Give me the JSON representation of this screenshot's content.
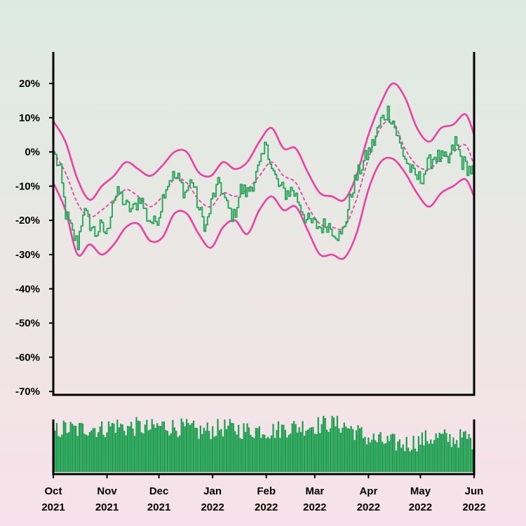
{
  "colors": {
    "price": "#2ea85f",
    "band": "#ef3fa2",
    "ma": "#ef3fa2",
    "volume": "#1a9e4e",
    "axis": "#000000"
  },
  "chart_data": [
    {
      "type": "line",
      "title": "",
      "xlabel": "",
      "ylabel": "",
      "ylim": [
        -70,
        30
      ],
      "y_ticks": [
        "20%",
        "10%",
        "0%",
        "-10%",
        "-20%",
        "-30%",
        "-40%",
        "-50%",
        "-60%",
        "-70%"
      ],
      "y_tick_values": [
        20,
        10,
        0,
        -10,
        -20,
        -30,
        -40,
        -50,
        -60,
        -70
      ],
      "x_range": [
        "2021-10-01",
        "2022-06-01"
      ],
      "x_ticks": [
        {
          "date": "2021-10-01",
          "month": "Oct",
          "year": "2021"
        },
        {
          "date": "2021-11-01",
          "month": "Nov",
          "year": "2021"
        },
        {
          "date": "2021-12-01",
          "month": "Dec",
          "year": "2021"
        },
        {
          "date": "2022-01-01",
          "month": "Jan",
          "year": "2022"
        },
        {
          "date": "2022-02-01",
          "month": "Feb",
          "year": "2022"
        },
        {
          "date": "2022-03-01",
          "month": "Mar",
          "year": "2022"
        },
        {
          "date": "2022-04-01",
          "month": "Apr",
          "year": "2022"
        },
        {
          "date": "2022-05-01",
          "month": "May",
          "year": "2022"
        },
        {
          "date": "2022-06-01",
          "month": "Jun",
          "year": "2022"
        }
      ],
      "grid": false,
      "series": [
        {
          "role": "price",
          "points": [
            [
              "2021-10-01",
              0
            ],
            [
              "2021-10-05",
              -6
            ],
            [
              "2021-10-08",
              -18
            ],
            [
              "2021-10-12",
              -24
            ],
            [
              "2021-10-15",
              -27
            ],
            [
              "2021-10-18",
              -17
            ],
            [
              "2021-10-21",
              -20
            ],
            [
              "2021-10-25",
              -24
            ],
            [
              "2021-10-28",
              -22
            ],
            [
              "2021-11-01",
              -24
            ],
            [
              "2021-11-04",
              -14
            ],
            [
              "2021-11-08",
              -12
            ],
            [
              "2021-11-12",
              -16
            ],
            [
              "2021-11-16",
              -17
            ],
            [
              "2021-11-20",
              -13
            ],
            [
              "2021-11-24",
              -19
            ],
            [
              "2021-11-28",
              -21
            ],
            [
              "2021-12-01",
              -18
            ],
            [
              "2021-12-04",
              -11
            ],
            [
              "2021-12-08",
              -7
            ],
            [
              "2021-12-12",
              -8
            ],
            [
              "2021-12-16",
              -12
            ],
            [
              "2021-12-20",
              -8
            ],
            [
              "2021-12-24",
              -17
            ],
            [
              "2021-12-28",
              -22
            ],
            [
              "2022-01-01",
              -13
            ],
            [
              "2022-01-05",
              -9
            ],
            [
              "2022-01-09",
              -16
            ],
            [
              "2022-01-13",
              -19
            ],
            [
              "2022-01-17",
              -11
            ],
            [
              "2022-01-21",
              -12
            ],
            [
              "2022-01-25",
              -8
            ],
            [
              "2022-01-29",
              -3
            ],
            [
              "2022-02-01",
              3
            ],
            [
              "2022-02-04",
              -5
            ],
            [
              "2022-02-08",
              -10
            ],
            [
              "2022-02-12",
              -12
            ],
            [
              "2022-02-16",
              -11
            ],
            [
              "2022-02-20",
              -15
            ],
            [
              "2022-02-24",
              -20
            ],
            [
              "2022-02-28",
              -21
            ],
            [
              "2022-03-04",
              -22
            ],
            [
              "2022-03-08",
              -21
            ],
            [
              "2022-03-12",
              -23
            ],
            [
              "2022-03-16",
              -25
            ],
            [
              "2022-03-19",
              -19
            ],
            [
              "2022-03-23",
              -10
            ],
            [
              "2022-03-27",
              -5
            ],
            [
              "2022-03-31",
              -1
            ],
            [
              "2022-04-04",
              3
            ],
            [
              "2022-04-08",
              9
            ],
            [
              "2022-04-12",
              12
            ],
            [
              "2022-04-15",
              9
            ],
            [
              "2022-04-19",
              2
            ],
            [
              "2022-04-23",
              -3
            ],
            [
              "2022-04-27",
              -7
            ],
            [
              "2022-05-01",
              -8
            ],
            [
              "2022-05-05",
              -4
            ],
            [
              "2022-05-09",
              -1
            ],
            [
              "2022-05-13",
              -2
            ],
            [
              "2022-05-17",
              -3
            ],
            [
              "2022-05-21",
              3
            ],
            [
              "2022-05-25",
              -3
            ],
            [
              "2022-05-29",
              -5
            ],
            [
              "2022-06-01",
              -6
            ]
          ]
        },
        {
          "role": "moving-average",
          "points": [
            [
              "2021-10-01",
              0
            ],
            [
              "2021-10-08",
              -6
            ],
            [
              "2021-10-15",
              -15
            ],
            [
              "2021-10-22",
              -19
            ],
            [
              "2021-10-29",
              -17
            ],
            [
              "2021-11-05",
              -14
            ],
            [
              "2021-11-12",
              -11
            ],
            [
              "2021-11-19",
              -13
            ],
            [
              "2021-11-26",
              -16
            ],
            [
              "2021-12-03",
              -13
            ],
            [
              "2021-12-10",
              -8
            ],
            [
              "2021-12-17",
              -9
            ],
            [
              "2021-12-24",
              -14
            ],
            [
              "2021-12-31",
              -16
            ],
            [
              "2022-01-07",
              -12
            ],
            [
              "2022-01-14",
              -13
            ],
            [
              "2022-01-21",
              -11
            ],
            [
              "2022-01-28",
              -7
            ],
            [
              "2022-02-04",
              -3
            ],
            [
              "2022-02-11",
              -7
            ],
            [
              "2022-02-18",
              -9
            ],
            [
              "2022-02-25",
              -16
            ],
            [
              "2022-03-04",
              -21
            ],
            [
              "2022-03-11",
              -22
            ],
            [
              "2022-03-18",
              -22
            ],
            [
              "2022-03-25",
              -14
            ],
            [
              "2022-04-01",
              -2
            ],
            [
              "2022-04-08",
              7
            ],
            [
              "2022-04-15",
              9
            ],
            [
              "2022-04-22",
              1
            ],
            [
              "2022-04-29",
              -4
            ],
            [
              "2022-05-06",
              -5
            ],
            [
              "2022-05-13",
              -2
            ],
            [
              "2022-05-20",
              0
            ],
            [
              "2022-05-27",
              2
            ],
            [
              "2022-06-01",
              -4
            ]
          ]
        },
        {
          "role": "upper-band",
          "points": [
            [
              "2021-10-01",
              9
            ],
            [
              "2021-10-08",
              3
            ],
            [
              "2021-10-15",
              -8
            ],
            [
              "2021-10-22",
              -14
            ],
            [
              "2021-10-29",
              -10
            ],
            [
              "2021-11-05",
              -7
            ],
            [
              "2021-11-12",
              -3
            ],
            [
              "2021-11-19",
              -5
            ],
            [
              "2021-11-26",
              -7
            ],
            [
              "2021-12-03",
              -4
            ],
            [
              "2021-12-10",
              0
            ],
            [
              "2021-12-17",
              0
            ],
            [
              "2021-12-24",
              -6
            ],
            [
              "2021-12-31",
              -7
            ],
            [
              "2022-01-07",
              -3
            ],
            [
              "2022-01-14",
              -5
            ],
            [
              "2022-01-21",
              -3
            ],
            [
              "2022-01-28",
              3
            ],
            [
              "2022-02-04",
              7
            ],
            [
              "2022-02-11",
              1
            ],
            [
              "2022-02-18",
              1
            ],
            [
              "2022-02-25",
              -6
            ],
            [
              "2022-03-04",
              -12
            ],
            [
              "2022-03-11",
              -13
            ],
            [
              "2022-03-18",
              -14
            ],
            [
              "2022-03-25",
              -7
            ],
            [
              "2022-04-01",
              5
            ],
            [
              "2022-04-08",
              14
            ],
            [
              "2022-04-15",
              20
            ],
            [
              "2022-04-22",
              16
            ],
            [
              "2022-04-29",
              7
            ],
            [
              "2022-05-06",
              3
            ],
            [
              "2022-05-13",
              7
            ],
            [
              "2022-05-20",
              8
            ],
            [
              "2022-05-27",
              11
            ],
            [
              "2022-06-01",
              5
            ]
          ]
        },
        {
          "role": "lower-band",
          "points": [
            [
              "2021-10-01",
              -9
            ],
            [
              "2021-10-08",
              -17
            ],
            [
              "2021-10-15",
              -30
            ],
            [
              "2021-10-22",
              -27
            ],
            [
              "2021-10-29",
              -30
            ],
            [
              "2021-11-05",
              -27
            ],
            [
              "2021-11-12",
              -22
            ],
            [
              "2021-11-19",
              -21
            ],
            [
              "2021-11-26",
              -26
            ],
            [
              "2021-12-03",
              -25
            ],
            [
              "2021-12-10",
              -18
            ],
            [
              "2021-12-17",
              -18
            ],
            [
              "2021-12-24",
              -24
            ],
            [
              "2021-12-31",
              -28
            ],
            [
              "2022-01-07",
              -22
            ],
            [
              "2022-01-14",
              -20
            ],
            [
              "2022-01-21",
              -24
            ],
            [
              "2022-01-28",
              -17
            ],
            [
              "2022-02-04",
              -13
            ],
            [
              "2022-02-11",
              -17
            ],
            [
              "2022-02-18",
              -16
            ],
            [
              "2022-02-25",
              -23
            ],
            [
              "2022-03-04",
              -30
            ],
            [
              "2022-03-11",
              -30
            ],
            [
              "2022-03-18",
              -31
            ],
            [
              "2022-03-25",
              -24
            ],
            [
              "2022-04-01",
              -11
            ],
            [
              "2022-04-08",
              -3
            ],
            [
              "2022-04-15",
              -2
            ],
            [
              "2022-04-22",
              -6
            ],
            [
              "2022-04-29",
              -12
            ],
            [
              "2022-05-06",
              -16
            ],
            [
              "2022-05-13",
              -12
            ],
            [
              "2022-05-20",
              -10
            ],
            [
              "2022-05-27",
              -8
            ],
            [
              "2022-06-01",
              -13
            ]
          ]
        }
      ]
    },
    {
      "type": "bar",
      "role": "volume",
      "title": "",
      "weekly_volume": [
        [
          "2021-10-01",
          0.72
        ],
        [
          "2021-10-08",
          0.78
        ],
        [
          "2021-10-15",
          0.75
        ],
        [
          "2021-10-22",
          0.8
        ],
        [
          "2021-10-29",
          0.76
        ],
        [
          "2021-11-05",
          0.84
        ],
        [
          "2021-11-12",
          0.79
        ],
        [
          "2021-11-19",
          0.81
        ],
        [
          "2021-11-26",
          0.77
        ],
        [
          "2021-12-03",
          0.83
        ],
        [
          "2021-12-10",
          0.8
        ],
        [
          "2021-12-17",
          0.78
        ],
        [
          "2021-12-24",
          0.72
        ],
        [
          "2021-12-31",
          0.75
        ],
        [
          "2022-01-07",
          0.79
        ],
        [
          "2022-01-14",
          0.77
        ],
        [
          "2022-01-21",
          0.74
        ],
        [
          "2022-01-28",
          0.76
        ],
        [
          "2022-02-04",
          0.73
        ],
        [
          "2022-02-11",
          0.78
        ],
        [
          "2022-02-18",
          0.8
        ],
        [
          "2022-02-25",
          0.82
        ],
        [
          "2022-03-04",
          0.84
        ],
        [
          "2022-03-11",
          0.88
        ],
        [
          "2022-03-18",
          0.83
        ],
        [
          "2022-03-25",
          0.72
        ],
        [
          "2022-04-01",
          0.6
        ],
        [
          "2022-04-08",
          0.55
        ],
        [
          "2022-04-15",
          0.52
        ],
        [
          "2022-04-22",
          0.5
        ],
        [
          "2022-04-29",
          0.54
        ],
        [
          "2022-05-06",
          0.6
        ],
        [
          "2022-05-13",
          0.62
        ],
        [
          "2022-05-20",
          0.58
        ],
        [
          "2022-05-27",
          0.62
        ],
        [
          "2022-06-01",
          0.55
        ]
      ]
    }
  ]
}
